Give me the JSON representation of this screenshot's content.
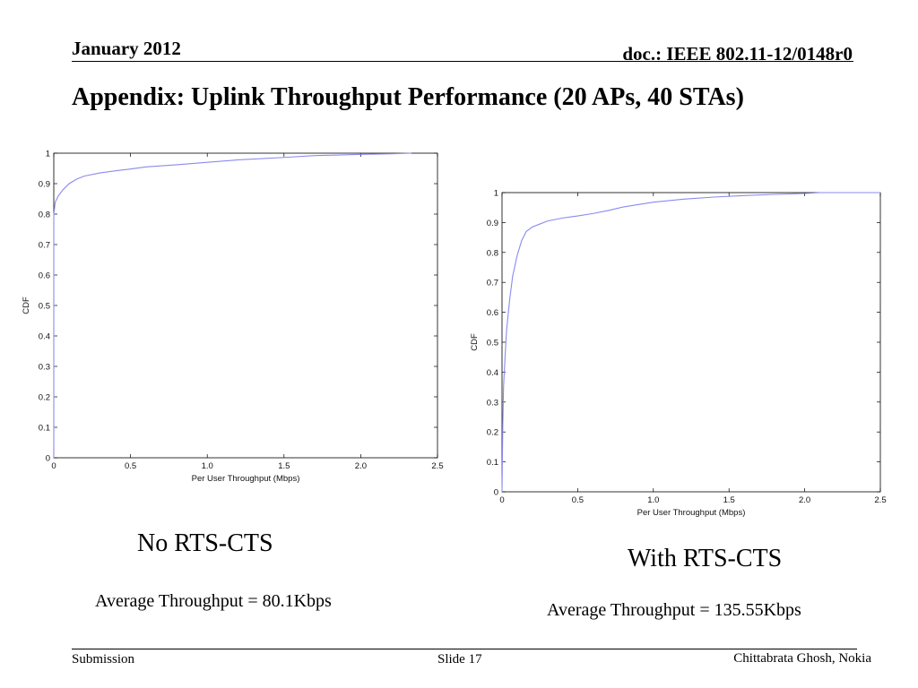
{
  "header": {
    "date": "January 2012",
    "doc": "doc.: IEEE 802.11-12/0148r0"
  },
  "title": "Appendix: Uplink Throughput Performance (20 APs, 40 STAs)",
  "footer": {
    "left": "Submission",
    "center": "Slide 17",
    "right": "Chittabrata Ghosh, Nokia"
  },
  "colors": {
    "curve": "#8a8af0",
    "axes": "#000000"
  },
  "chart_data": [
    {
      "type": "line",
      "caption": "No RTS-CTS",
      "average": "Average Throughput = 80.1Kbps",
      "xlabel": "Per User Throughput (Mbps)",
      "ylabel": "CDF",
      "xlim": [
        0,
        2.5
      ],
      "ylim": [
        0,
        1
      ],
      "xticks": [
        0,
        0.5,
        1.0,
        1.5,
        2.0,
        2.5
      ],
      "xtick_labels": [
        "0",
        "0.5",
        "1.0",
        "1.5",
        "2.0",
        "2.5"
      ],
      "yticks": [
        0,
        0.1,
        0.2,
        0.3,
        0.4,
        0.5,
        0.6,
        0.7,
        0.8,
        0.9,
        1
      ],
      "ytick_labels": [
        "0",
        "0.1",
        "0.2",
        "0.3",
        "0.4",
        "0.5",
        "0.6",
        "0.7",
        "0.8",
        "0.9",
        "1"
      ],
      "grid": false,
      "series": [
        {
          "x": [
            0,
            0,
            0.01,
            0.03,
            0.06,
            0.1,
            0.15,
            0.2,
            0.3,
            0.4,
            0.5,
            0.6,
            0.8,
            1.0,
            1.2,
            1.5,
            1.7,
            2.0,
            2.2,
            2.33
          ],
          "y": [
            0,
            0.8,
            0.84,
            0.86,
            0.88,
            0.9,
            0.915,
            0.925,
            0.935,
            0.942,
            0.948,
            0.955,
            0.962,
            0.97,
            0.978,
            0.986,
            0.992,
            0.996,
            0.998,
            1.0
          ]
        }
      ]
    },
    {
      "type": "line",
      "caption": "With RTS-CTS",
      "average": "Average Throughput = 135.55Kbps",
      "xlabel": "Per User Throughput (Mbps)",
      "ylabel": "CDF",
      "xlim": [
        0,
        2.5
      ],
      "ylim": [
        0,
        1
      ],
      "xticks": [
        0,
        0.5,
        1.0,
        1.5,
        2.0,
        2.5
      ],
      "xtick_labels": [
        "0",
        "0.5",
        "1.0",
        "1.5",
        "2.0",
        "2.5"
      ],
      "yticks": [
        0,
        0.1,
        0.2,
        0.3,
        0.4,
        0.5,
        0.6,
        0.7,
        0.8,
        0.9,
        1
      ],
      "ytick_labels": [
        "0",
        "0.1",
        "0.2",
        "0.3",
        "0.4",
        "0.5",
        "0.6",
        "0.7",
        "0.8",
        "0.9",
        "1"
      ],
      "grid": false,
      "series": [
        {
          "x": [
            0,
            0.005,
            0.01,
            0.02,
            0.03,
            0.05,
            0.07,
            0.1,
            0.13,
            0.16,
            0.2,
            0.25,
            0.3,
            0.4,
            0.5,
            0.6,
            0.7,
            0.8,
            1.0,
            1.2,
            1.4,
            1.6,
            1.8,
            2.0,
            2.1,
            2.5
          ],
          "y": [
            0,
            0.22,
            0.35,
            0.45,
            0.54,
            0.64,
            0.72,
            0.79,
            0.84,
            0.87,
            0.885,
            0.895,
            0.905,
            0.915,
            0.922,
            0.93,
            0.94,
            0.952,
            0.968,
            0.978,
            0.985,
            0.99,
            0.994,
            0.997,
            1.0,
            1.0
          ]
        }
      ]
    }
  ]
}
